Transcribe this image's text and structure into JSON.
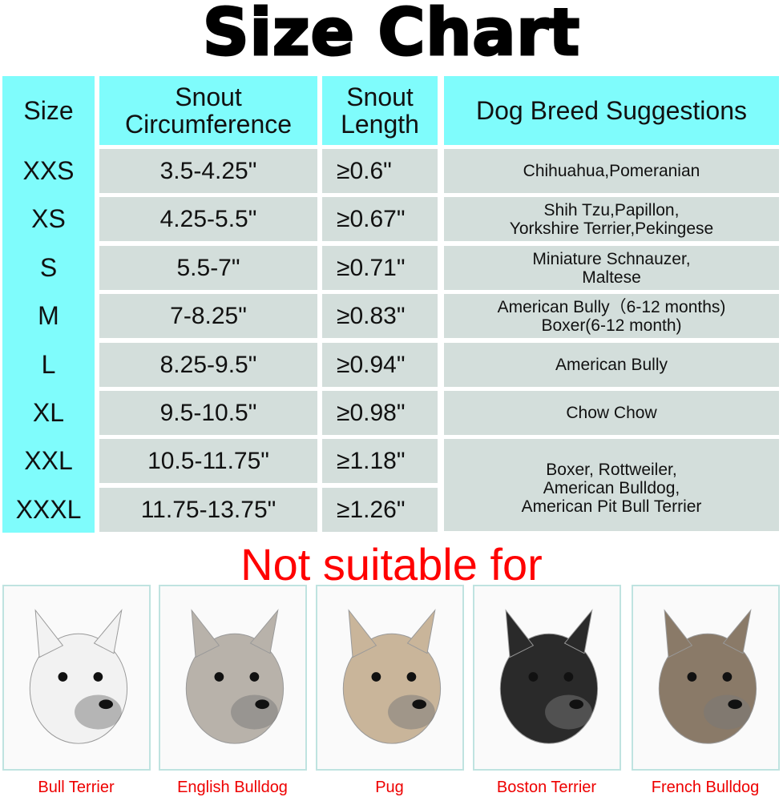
{
  "title": "Size Chart",
  "colors": {
    "header_bg": "#7ffcfc",
    "cell_bg": "#d3dedb",
    "warning_text": "#ff0000"
  },
  "table": {
    "headers": [
      "Size",
      "Snout\nCircumference",
      "Snout\nLength",
      "Dog Breed Suggestions"
    ],
    "rows": [
      {
        "size": "XXS",
        "circumference": "3.5-4.25\"",
        "length": "≥0.6\""
      },
      {
        "size": "XS",
        "circumference": "4.25-5.5\"",
        "length": "≥0.67\""
      },
      {
        "size": "S",
        "circumference": "5.5-7\"",
        "length": "≥0.71\""
      },
      {
        "size": "M",
        "circumference": "7-8.25\"",
        "length": "≥0.83\""
      },
      {
        "size": "L",
        "circumference": "8.25-9.5\"",
        "length": "≥0.94\""
      },
      {
        "size": "XL",
        "circumference": "9.5-10.5\"",
        "length": "≥0.98\""
      },
      {
        "size": "XXL",
        "circumference": "10.5-11.75\"",
        "length": "≥1.18\""
      },
      {
        "size": "XXXL",
        "circumference": "11.75-13.75\"",
        "length": "≥1.26\""
      }
    ],
    "breeds": [
      "Chihuahua,Pomeranian",
      "Shih Tzu,Papillon,\nYorkshire Terrier,Pekingese",
      "Miniature Schnauzer,\nMaltese",
      "American Bully（6-12 months)\nBoxer(6-12 month)",
      "American Bully",
      "Chow Chow",
      "Boxer, Rottweiler,\nAmerican Bulldog,\nAmerican Pit Bull Terrier"
    ]
  },
  "not_suitable": {
    "heading": "Not suitable for",
    "dogs": [
      {
        "name": "Bull Terrier",
        "tone": "#f2f2f2"
      },
      {
        "name": "English Bulldog",
        "tone": "#b8b2aa"
      },
      {
        "name": "Pug",
        "tone": "#c9b59a"
      },
      {
        "name": "Boston Terrier",
        "tone": "#2a2a2a"
      },
      {
        "name": "French Bulldog",
        "tone": "#8a7a68"
      }
    ]
  }
}
